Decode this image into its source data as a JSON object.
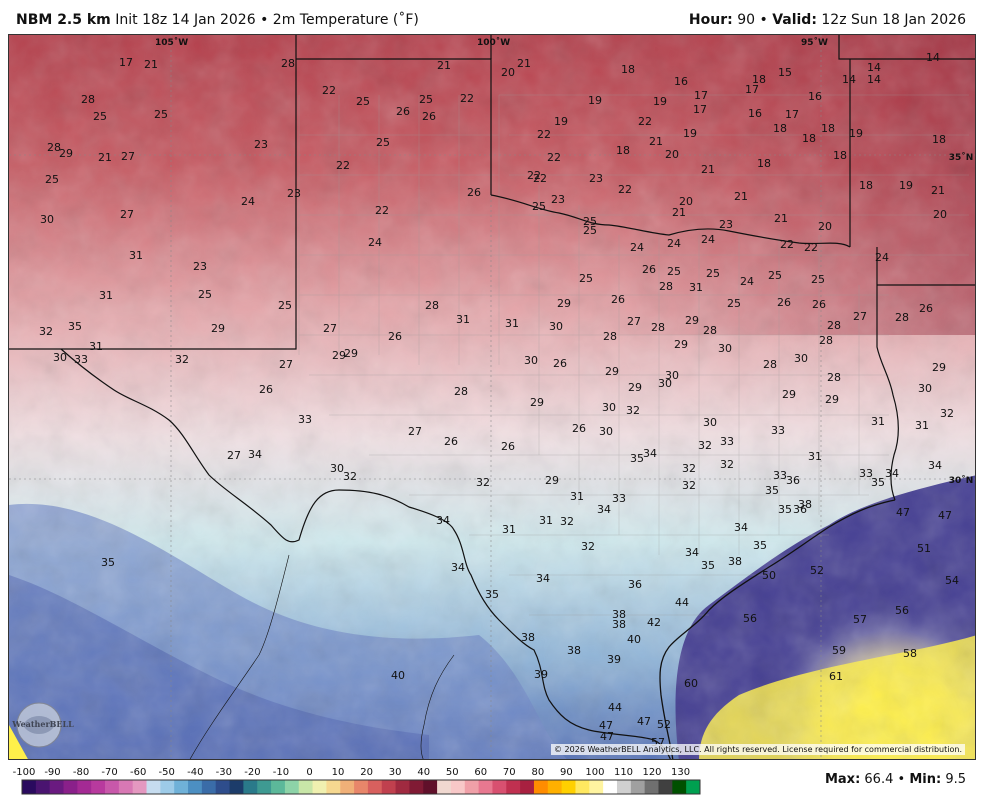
{
  "header": {
    "model": "NBM 2.5 km",
    "init": "Init 18z 14 Jan 2026",
    "sep": "•",
    "field": "2m Temperature (˚F)",
    "hour_label": "Hour:",
    "hour_value": "90",
    "valid_label": "Valid:",
    "valid_value": "12z Sun 18 Jan 2026"
  },
  "map": {
    "lon_labels": [
      "105˚W",
      "100˚W",
      "95˚W"
    ],
    "lat_labels": [
      "35˚N",
      "30˚N"
    ],
    "copyright": "© 2026 WeatherBELL Analytics, LLC. All rights reserved. License required for commercial distribution.",
    "logo_text": "WeatherBELL",
    "temps": [
      [
        "17",
        125,
        61
      ],
      [
        "21",
        150,
        63
      ],
      [
        "28",
        287,
        62
      ],
      [
        "21",
        443,
        64
      ],
      [
        "21",
        523,
        62
      ],
      [
        "20",
        507,
        71
      ],
      [
        "18",
        627,
        68
      ],
      [
        "16",
        680,
        80
      ],
      [
        "17",
        700,
        94
      ],
      [
        "17",
        751,
        88
      ],
      [
        "18",
        758,
        78
      ],
      [
        "15",
        784,
        71
      ],
      [
        "16",
        814,
        95
      ],
      [
        "14",
        848,
        78
      ],
      [
        "14",
        873,
        66
      ],
      [
        "14",
        873,
        78
      ],
      [
        "14",
        932,
        56
      ],
      [
        "28",
        87,
        98
      ],
      [
        "25",
        99,
        115
      ],
      [
        "25",
        160,
        113
      ],
      [
        "22",
        328,
        89
      ],
      [
        "25",
        362,
        100
      ],
      [
        "26",
        402,
        110
      ],
      [
        "25",
        425,
        98
      ],
      [
        "26",
        428,
        115
      ],
      [
        "22",
        466,
        97
      ],
      [
        "19",
        594,
        99
      ],
      [
        "19",
        659,
        100
      ],
      [
        "17",
        699,
        108
      ],
      [
        "16",
        754,
        112
      ],
      [
        "17",
        791,
        113
      ],
      [
        "18",
        779,
        127
      ],
      [
        "18",
        827,
        127
      ],
      [
        "19",
        855,
        132
      ],
      [
        "18",
        938,
        138
      ],
      [
        "22",
        644,
        120
      ],
      [
        "19",
        560,
        120
      ],
      [
        "28",
        53,
        146
      ],
      [
        "29",
        65,
        152
      ],
      [
        "21",
        104,
        156
      ],
      [
        "27",
        127,
        155
      ],
      [
        "23",
        260,
        143
      ],
      [
        "25",
        382,
        141
      ],
      [
        "22",
        543,
        133
      ],
      [
        "22",
        553,
        156
      ],
      [
        "18",
        622,
        149
      ],
      [
        "21",
        655,
        140
      ],
      [
        "19",
        689,
        132
      ],
      [
        "20",
        671,
        153
      ],
      [
        "21",
        707,
        168
      ],
      [
        "18",
        763,
        162
      ],
      [
        "18",
        808,
        137
      ],
      [
        "18",
        839,
        154
      ],
      [
        "35˚N",
        960,
        155
      ],
      [
        "25",
        51,
        178
      ],
      [
        "22",
        342,
        164
      ],
      [
        "22",
        533,
        174
      ],
      [
        "22",
        539,
        177
      ],
      [
        "23",
        595,
        177
      ],
      [
        "22",
        624,
        188
      ],
      [
        "18",
        865,
        184
      ],
      [
        "19",
        905,
        184
      ],
      [
        "21",
        937,
        189
      ],
      [
        "20",
        939,
        213
      ],
      [
        "30",
        46,
        218
      ],
      [
        "27",
        126,
        213
      ],
      [
        "24",
        247,
        200
      ],
      [
        "23",
        293,
        192
      ],
      [
        "22",
        381,
        209
      ],
      [
        "26",
        473,
        191
      ],
      [
        "23",
        557,
        198
      ],
      [
        "25",
        538,
        205
      ],
      [
        "20",
        685,
        200
      ],
      [
        "21",
        740,
        195
      ],
      [
        "21",
        678,
        211
      ],
      [
        "21",
        780,
        217
      ],
      [
        "20",
        824,
        225
      ],
      [
        "25",
        589,
        220
      ],
      [
        "25",
        589,
        229
      ],
      [
        "24",
        374,
        241
      ],
      [
        "24",
        636,
        246
      ],
      [
        "24",
        673,
        242
      ],
      [
        "24",
        707,
        238
      ],
      [
        "23",
        725,
        223
      ],
      [
        "22",
        786,
        243
      ],
      [
        "22",
        810,
        246
      ],
      [
        "24",
        881,
        256
      ],
      [
        "31",
        135,
        254
      ],
      [
        "23",
        199,
        265
      ],
      [
        "25",
        585,
        277
      ],
      [
        "26",
        648,
        268
      ],
      [
        "25",
        673,
        270
      ],
      [
        "25",
        712,
        272
      ],
      [
        "24",
        746,
        280
      ],
      [
        "25",
        774,
        274
      ],
      [
        "25",
        817,
        278
      ],
      [
        "28",
        665,
        285
      ],
      [
        "31",
        695,
        286
      ],
      [
        "31",
        105,
        294
      ],
      [
        "25",
        204,
        293
      ],
      [
        "25",
        284,
        304
      ],
      [
        "28",
        431,
        304
      ],
      [
        "29",
        563,
        302
      ],
      [
        "26",
        617,
        298
      ],
      [
        "25",
        733,
        302
      ],
      [
        "26",
        783,
        301
      ],
      [
        "26",
        818,
        303
      ],
      [
        "26",
        925,
        307
      ],
      [
        "27",
        859,
        315
      ],
      [
        "28",
        901,
        316
      ],
      [
        "32",
        45,
        330
      ],
      [
        "35",
        74,
        325
      ],
      [
        "29",
        217,
        327
      ],
      [
        "27",
        329,
        327
      ],
      [
        "31",
        462,
        318
      ],
      [
        "31",
        511,
        322
      ],
      [
        "30",
        555,
        325
      ],
      [
        "28",
        609,
        335
      ],
      [
        "27",
        633,
        320
      ],
      [
        "28",
        657,
        326
      ],
      [
        "29",
        691,
        319
      ],
      [
        "28",
        709,
        329
      ],
      [
        "28",
        833,
        324
      ],
      [
        "28",
        825,
        339
      ],
      [
        "31",
        95,
        345
      ],
      [
        "30",
        59,
        356
      ],
      [
        "33",
        80,
        358
      ],
      [
        "32",
        181,
        358
      ],
      [
        "27",
        285,
        363
      ],
      [
        "29",
        338,
        354
      ],
      [
        "29",
        350,
        352
      ],
      [
        "26",
        394,
        335
      ],
      [
        "30",
        530,
        359
      ],
      [
        "26",
        559,
        362
      ],
      [
        "29",
        611,
        370
      ],
      [
        "29",
        680,
        343
      ],
      [
        "30",
        724,
        347
      ],
      [
        "28",
        769,
        363
      ],
      [
        "30",
        800,
        357
      ],
      [
        "29",
        938,
        366
      ],
      [
        "26",
        265,
        388
      ],
      [
        "28",
        460,
        390
      ],
      [
        "29",
        536,
        401
      ],
      [
        "29",
        634,
        386
      ],
      [
        "30",
        664,
        382
      ],
      [
        "30",
        671,
        374
      ],
      [
        "29",
        788,
        393
      ],
      [
        "28",
        833,
        376
      ],
      [
        "29",
        831,
        398
      ],
      [
        "30",
        924,
        387
      ],
      [
        "33",
        304,
        418
      ],
      [
        "30",
        608,
        406
      ],
      [
        "32",
        632,
        409
      ],
      [
        "30",
        709,
        421
      ],
      [
        "31",
        877,
        420
      ],
      [
        "31",
        921,
        424
      ],
      [
        "32",
        946,
        412
      ],
      [
        "27",
        414,
        430
      ],
      [
        "26",
        450,
        440
      ],
      [
        "26",
        507,
        445
      ],
      [
        "26",
        578,
        427
      ],
      [
        "30",
        605,
        430
      ],
      [
        "32",
        704,
        444
      ],
      [
        "33",
        726,
        440
      ],
      [
        "33",
        777,
        429
      ],
      [
        "34",
        649,
        452
      ],
      [
        "35",
        636,
        457
      ],
      [
        "27",
        233,
        454
      ],
      [
        "34",
        254,
        453
      ],
      [
        "30",
        336,
        467
      ],
      [
        "32",
        349,
        475
      ],
      [
        "32",
        688,
        467
      ],
      [
        "32",
        726,
        463
      ],
      [
        "31",
        814,
        455
      ],
      [
        "33",
        779,
        474
      ],
      [
        "36",
        792,
        479
      ],
      [
        "33",
        865,
        472
      ],
      [
        "35",
        877,
        481
      ],
      [
        "34",
        891,
        472
      ],
      [
        "34",
        934,
        464
      ],
      [
        "30˚N",
        960,
        478
      ],
      [
        "32",
        482,
        481
      ],
      [
        "29",
        551,
        479
      ],
      [
        "32",
        688,
        484
      ],
      [
        "35",
        771,
        489
      ],
      [
        "33",
        618,
        497
      ],
      [
        "31",
        576,
        495
      ],
      [
        "34",
        603,
        508
      ],
      [
        "38",
        804,
        503
      ],
      [
        "35",
        784,
        508
      ],
      [
        "36",
        799,
        508
      ],
      [
        "47",
        902,
        511
      ],
      [
        "47",
        944,
        514
      ],
      [
        "34",
        442,
        519
      ],
      [
        "31",
        508,
        528
      ],
      [
        "31",
        545,
        519
      ],
      [
        "32",
        566,
        520
      ],
      [
        "34",
        740,
        526
      ],
      [
        "32",
        587,
        545
      ],
      [
        "35",
        759,
        544
      ],
      [
        "51",
        923,
        547
      ],
      [
        "35",
        107,
        561
      ],
      [
        "34",
        457,
        566
      ],
      [
        "34",
        691,
        551
      ],
      [
        "35",
        707,
        564
      ],
      [
        "38",
        734,
        560
      ],
      [
        "34",
        542,
        577
      ],
      [
        "36",
        634,
        583
      ],
      [
        "50",
        768,
        574
      ],
      [
        "52",
        816,
        569
      ],
      [
        "54",
        951,
        579
      ],
      [
        "35",
        491,
        593
      ],
      [
        "44",
        681,
        601
      ],
      [
        "38",
        618,
        613
      ],
      [
        "38",
        618,
        623
      ],
      [
        "42",
        653,
        621
      ],
      [
        "56",
        749,
        617
      ],
      [
        "57",
        859,
        618
      ],
      [
        "56",
        901,
        609
      ],
      [
        "38",
        527,
        636
      ],
      [
        "40",
        633,
        638
      ],
      [
        "38",
        573,
        649
      ],
      [
        "39",
        613,
        658
      ],
      [
        "59",
        838,
        649
      ],
      [
        "58",
        909,
        652
      ],
      [
        "40",
        397,
        674
      ],
      [
        "39",
        540,
        673
      ],
      [
        "61",
        835,
        675
      ],
      [
        "60",
        690,
        682
      ],
      [
        "44",
        614,
        706
      ],
      [
        "47",
        605,
        724
      ],
      [
        "47",
        643,
        720
      ],
      [
        "52",
        663,
        723
      ],
      [
        "47",
        606,
        735
      ],
      [
        "57",
        657,
        741
      ]
    ]
  },
  "colorbar": {
    "ticks": [
      "-100",
      "-90",
      "-80",
      "-70",
      "-60",
      "-50",
      "-40",
      "-30",
      "-20",
      "-10",
      "0",
      "10",
      "20",
      "30",
      "40",
      "50",
      "60",
      "70",
      "80",
      "90",
      "100",
      "110",
      "120",
      "130"
    ],
    "colors": [
      "#2a0a5e",
      "#4a1470",
      "#6a1a80",
      "#8a208a",
      "#a42a94",
      "#b83a9e",
      "#c858aa",
      "#d878b4",
      "#e498c0",
      "#c6dcef",
      "#9dcbe8",
      "#6fb1d8",
      "#4c8fc2",
      "#3a6ca8",
      "#2e4d8c",
      "#1c3c6a",
      "#2a7a8a",
      "#3e9a92",
      "#5cb89a",
      "#8dd3a8",
      "#c8e6a8",
      "#f0f0b0",
      "#f6d890",
      "#f0b078",
      "#e8866a",
      "#d8605e",
      "#c0404e",
      "#a02a40",
      "#801a34",
      "#60102a",
      "#f0d8d0",
      "#f8c8c8",
      "#f0a0a8",
      "#e87890",
      "#d85070",
      "#c03050",
      "#a82040",
      "#ff8c00",
      "#ffb000",
      "#ffd000",
      "#ffe860",
      "#fff4a0",
      "#ffffff",
      "#d0d0d0",
      "#a0a0a0",
      "#707070",
      "#404040",
      "#005000",
      "#00a050"
    ],
    "max_label": "Max:",
    "max_value": "66.4",
    "min_label": "Min:",
    "min_value": "9.5"
  }
}
